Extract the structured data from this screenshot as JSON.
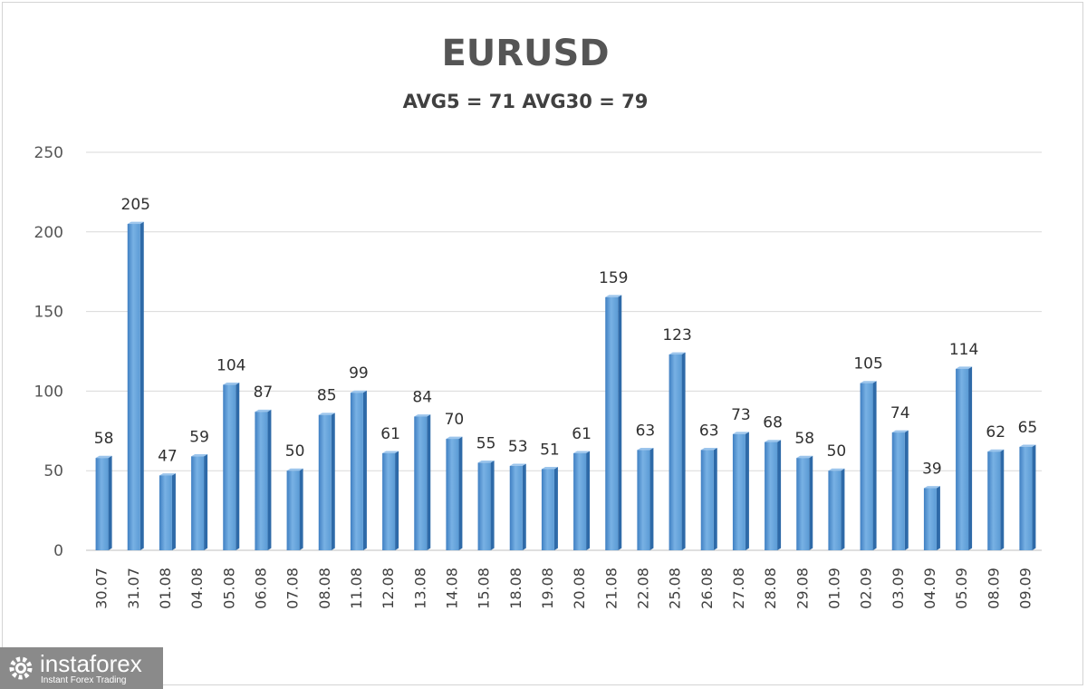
{
  "chart_data": {
    "type": "bar",
    "title": "EURUSD",
    "subtitle": "AVG5 = 71 AVG30 = 79",
    "xlabel": "",
    "ylabel": "",
    "ylim": [
      0,
      250
    ],
    "yticks": [
      0,
      50,
      100,
      150,
      200,
      250
    ],
    "grid": true,
    "categories": [
      "30.07",
      "31.07",
      "01.08",
      "04.08",
      "05.08",
      "06.08",
      "07.08",
      "08.08",
      "11.08",
      "12.08",
      "13.08",
      "14.08",
      "15.08",
      "18.08",
      "19.08",
      "20.08",
      "21.08",
      "22.08",
      "25.08",
      "26.08",
      "27.08",
      "28.08",
      "29.08",
      "01.09",
      "02.09",
      "03.09",
      "04.09",
      "05.09",
      "08.09",
      "09.09"
    ],
    "values": [
      58,
      205,
      47,
      59,
      104,
      87,
      50,
      85,
      99,
      61,
      84,
      70,
      55,
      53,
      51,
      61,
      159,
      63,
      123,
      63,
      73,
      68,
      58,
      50,
      105,
      74,
      39,
      114,
      62,
      65
    ],
    "bar_color": "#5b9bd5"
  },
  "logo": {
    "name": "instaforex",
    "tagline": "Instant Forex Trading",
    "icon": "gear-icon"
  }
}
